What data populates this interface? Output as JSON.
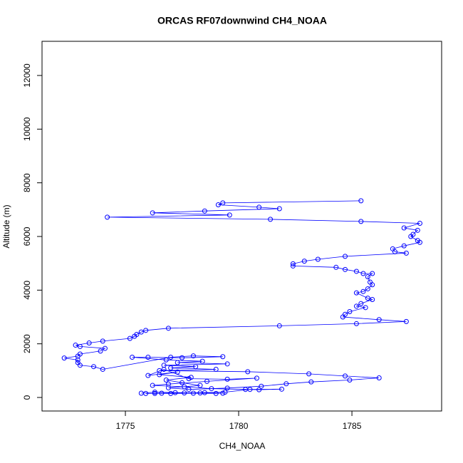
{
  "chart_data": {
    "type": "line-points",
    "title": "ORCAS RF07downwind CH4_NOAA",
    "x_label": "CH4_NOAA",
    "y_label": "Altitude (m)",
    "color": "#0000ff",
    "xlim": [
      1771.32,
      1788.96
    ],
    "ylim": [
      -504,
      13273
    ],
    "xticks": [
      1775,
      1780,
      1785
    ],
    "yticks": [
      0,
      2000,
      4000,
      6000,
      8000,
      10000,
      12000
    ],
    "x": [
      1785.4,
      1779.3,
      1779.1,
      1780.9,
      1781.8,
      1778.5,
      1776.2,
      1779.6,
      1774.2,
      1781.4,
      1785.4,
      1788.0,
      1787.3,
      1787.9,
      1787.7,
      1787.6,
      1787.9,
      1788.0,
      1787.3,
      1786.8,
      1786.9,
      1787.4,
      1784.7,
      1783.5,
      1782.9,
      1782.4,
      1782.4,
      1784.3,
      1784.7,
      1785.2,
      1785.5,
      1785.9,
      1785.7,
      1785.8,
      1785.9,
      1785.7,
      1785.5,
      1785.2,
      1785.7,
      1785.9,
      1785.4,
      1785.2,
      1785.6,
      1784.9,
      1784.7,
      1784.6,
      1786.2,
      1787.4,
      1785.2,
      1781.8,
      1776.9,
      1775.9,
      1775.7,
      1775.5,
      1775.4,
      1775.2,
      1774.0,
      1773.4,
      1772.8,
      1773.0,
      1774.1,
      1773.9,
      1773.0,
      1772.9,
      1772.3,
      1772.9,
      1772.9,
      1773.0,
      1773.6,
      1774.0,
      1777.0,
      1778.0,
      1779.3,
      1777.5,
      1776.0,
      1775.3,
      1776.8,
      1778.4,
      1777.3,
      1779.5,
      1776.7,
      1778.1,
      1777.0,
      1779.0,
      1776.5,
      1780.4,
      1783.1,
      1784.7,
      1786.2,
      1784.9,
      1783.2,
      1782.1,
      1781.0,
      1779.5,
      1777.8,
      1776.9,
      1778.3,
      1777.5,
      1776.8,
      1777.9,
      1776.5,
      1777.3,
      1776.0,
      1776.7,
      1777.8,
      1779.5,
      1780.8,
      1778.6,
      1776.9,
      1776.2,
      1777.6,
      1778.8,
      1780.3,
      1780.9,
      1781.9,
      1780.5,
      1779.4,
      1778.5,
      1777.6,
      1776.6,
      1775.9,
      1776.3,
      1777.0,
      1778.0,
      1779.0,
      1779.3,
      1778.3,
      1777.2,
      1776.3,
      1775.7
    ],
    "y": [
      7330,
      7250,
      7180,
      7090,
      7035,
      6950,
      6880,
      6800,
      6720,
      6640,
      6560,
      6490,
      6318,
      6230,
      6080,
      6000,
      5850,
      5780,
      5650,
      5540,
      5430,
      5380,
      5260,
      5150,
      5080,
      4980,
      4900,
      4850,
      4770,
      4700,
      4620,
      4620,
      4500,
      4300,
      4200,
      4050,
      3950,
      3900,
      3700,
      3650,
      3500,
      3400,
      3350,
      3200,
      3100,
      3000,
      2900,
      2830,
      2750,
      2670,
      2580,
      2500,
      2440,
      2350,
      2280,
      2200,
      2100,
      2030,
      1950,
      1900,
      1830,
      1730,
      1620,
      1540,
      1470,
      1400,
      1300,
      1200,
      1150,
      1050,
      1500,
      1550,
      1520,
      1480,
      1500,
      1500,
      1400,
      1350,
      1300,
      1250,
      1200,
      1150,
      1100,
      1050,
      1000,
      960,
      880,
      800,
      730,
      650,
      580,
      510,
      420,
      350,
      300,
      360,
      450,
      550,
      650,
      750,
      850,
      950,
      820,
      1050,
      700,
      680,
      720,
      600,
      500,
      450,
      400,
      330,
      300,
      290,
      310,
      300,
      200,
      180,
      170,
      160,
      150,
      150,
      150,
      160,
      150,
      160,
      170,
      180,
      200,
      160
    ]
  }
}
